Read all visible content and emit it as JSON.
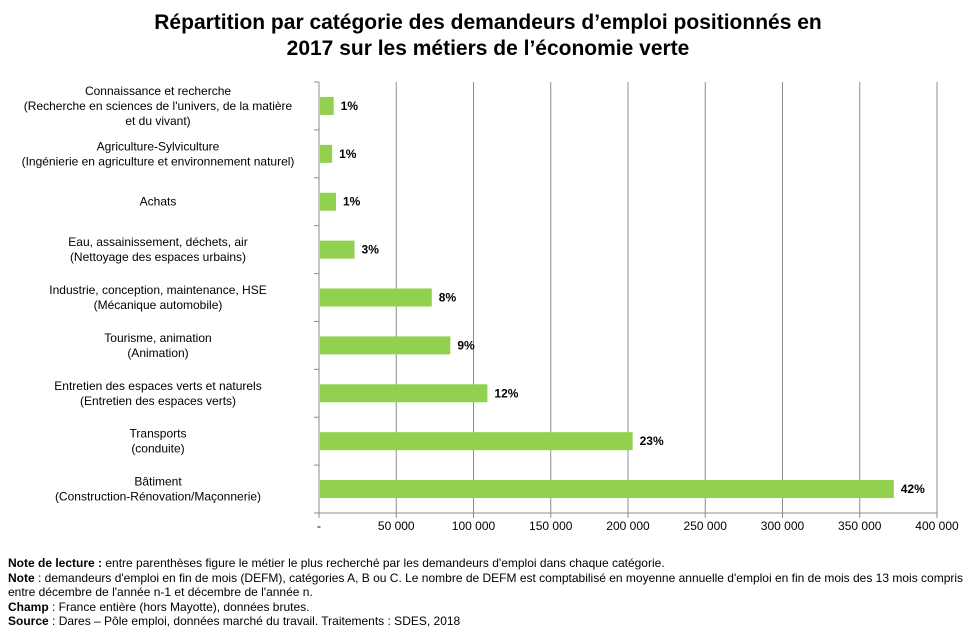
{
  "title": {
    "line1": "Répartition par catégorie des demandeurs d’emploi positionnés en",
    "line2": "2017 sur les métiers de l’économie verte"
  },
  "chart_data": {
    "type": "bar",
    "orientation": "horizontal",
    "bar_color": "#92D050",
    "xlim": [
      0,
      400000
    ],
    "xticks": [
      0,
      50000,
      100000,
      150000,
      200000,
      250000,
      300000,
      350000,
      400000
    ],
    "xtick_labels": [
      "-",
      "50 000",
      "100 000",
      "150 000",
      "200 000",
      "250 000",
      "300 000",
      "350 000",
      "400 000"
    ],
    "grid": true,
    "categories": [
      [
        "Connaissance et recherche",
        "(Recherche en sciences de l'univers, de la matière",
        "et du vivant)"
      ],
      [
        "Agriculture-Sylviculture",
        "(Ingénierie en agriculture et environnement naturel)"
      ],
      [
        "Achats"
      ],
      [
        "Eau, assainissement, déchets, air",
        "(Nettoyage des espaces urbains)"
      ],
      [
        "Industrie, conception, maintenance, HSE",
        "(Mécanique automobile)"
      ],
      [
        "Tourisme, animation",
        "(Animation)"
      ],
      [
        "Entretien des espaces verts et naturels",
        "(Entretien des espaces verts)"
      ],
      [
        "Transports",
        "(conduite)"
      ],
      [
        "Bâtiment",
        "(Construction-Rénovation/Maçonnerie)"
      ]
    ],
    "values": [
      9500,
      8500,
      11000,
      23000,
      73000,
      85000,
      109000,
      203000,
      372000
    ],
    "data_labels": [
      "1%",
      "1%",
      "1%",
      "3%",
      "8%",
      "9%",
      "12%",
      "23%",
      "42%"
    ]
  },
  "notes": {
    "lecture_label": "Note de lecture :",
    "lecture_text": " entre parenthèses figure le métier le plus recherché par les demandeurs d'emploi dans chaque catégorie.",
    "note_label": "Note",
    "note_text": " : demandeurs d'emploi en fin de mois (DEFM), catégories A, B ou C. Le nombre de DEFM est comptabilisé en moyenne annuelle d'emploi en fin de mois des 13 mois compris entre décembre de l'année n-1 et décembre de l'année n.",
    "champ_label": "Champ",
    "champ_text": " : France entière (hors Mayotte), données brutes.",
    "source_label": "Source",
    "source_text": " : Dares – Pôle emploi, données marché du travail. Traitements : SDES, 2018"
  }
}
